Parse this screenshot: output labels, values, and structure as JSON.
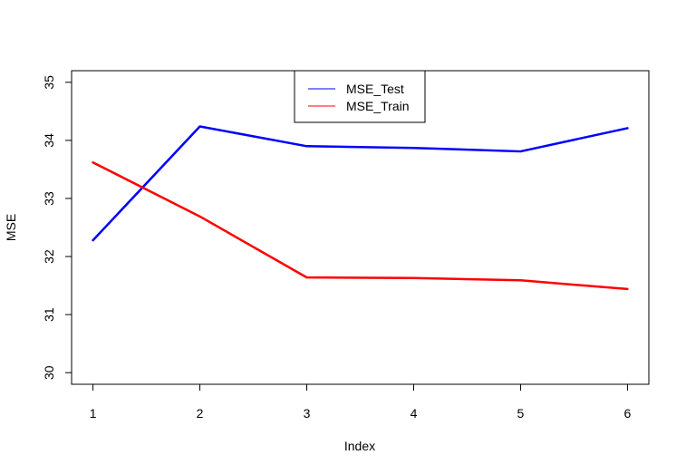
{
  "chart_data": {
    "type": "line",
    "title": "",
    "xlabel": "Index",
    "ylabel": "MSE",
    "x": [
      1,
      2,
      3,
      4,
      5,
      6
    ],
    "xticks": [
      "1",
      "2",
      "3",
      "4",
      "5",
      "6"
    ],
    "yticks": [
      "30",
      "31",
      "32",
      "33",
      "34",
      "35"
    ],
    "xlim": [
      0.8,
      6.2
    ],
    "ylim": [
      29.8,
      35.2
    ],
    "grid": false,
    "legend_position": "top-center",
    "series": [
      {
        "name": "MSE_Test",
        "color": "#0000ff",
        "values": [
          32.28,
          34.24,
          33.9,
          33.87,
          33.81,
          34.21
        ]
      },
      {
        "name": "MSE_Train",
        "color": "#ff0000",
        "values": [
          33.62,
          32.69,
          31.64,
          31.63,
          31.59,
          31.44
        ]
      }
    ]
  }
}
